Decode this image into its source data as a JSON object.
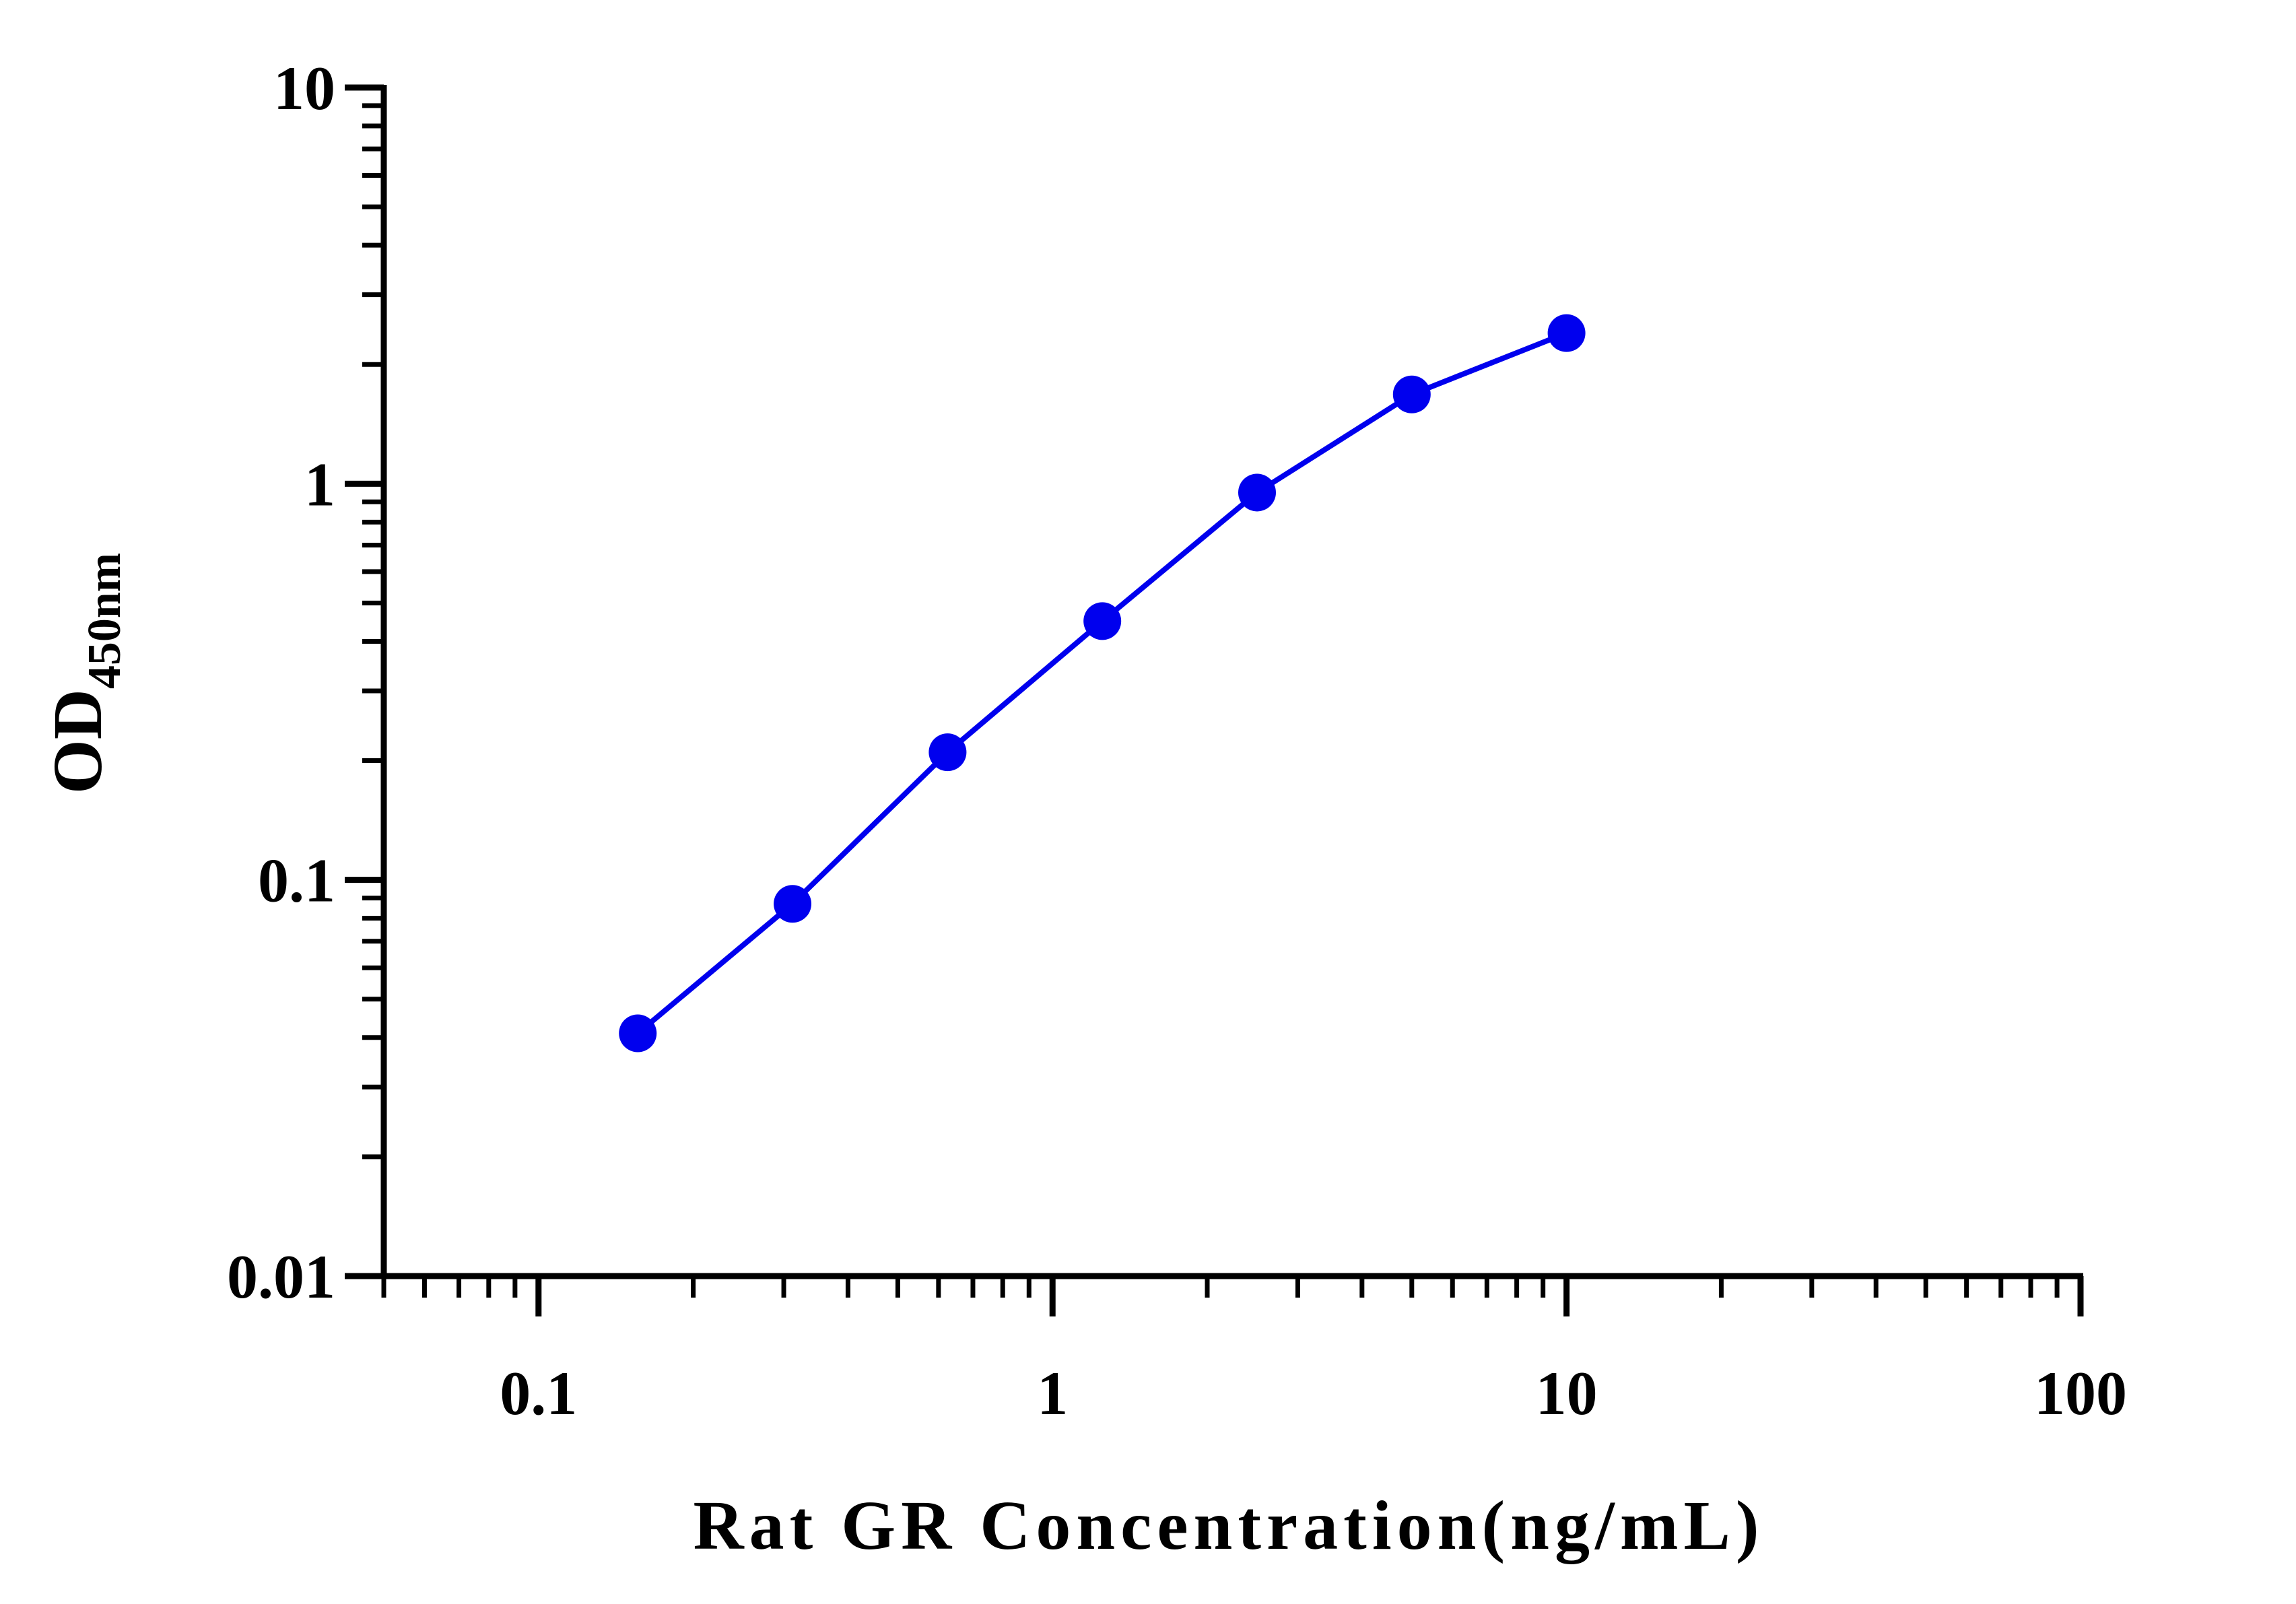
{
  "chart_data": {
    "type": "line",
    "title": "",
    "xlabel": "Rat GR Concentration(ng/mL)",
    "ylabel": "OD",
    "ylabel_subscript": "450nm",
    "xscale": "log",
    "yscale": "log",
    "xlim": [
      0.05,
      100
    ],
    "ylim": [
      0.01,
      10
    ],
    "x_tick_labels": [
      "0.1",
      "1",
      "10",
      "100"
    ],
    "y_tick_labels": [
      "0.01",
      "0.1",
      "1",
      "10"
    ],
    "grid": false,
    "legend": "none",
    "series": [
      {
        "color": "#0000ee",
        "x": [
          0.156,
          0.312,
          0.625,
          1.25,
          2.5,
          5,
          10
        ],
        "y": [
          0.041,
          0.087,
          0.21,
          0.45,
          0.95,
          1.68,
          2.4
        ]
      }
    ]
  }
}
